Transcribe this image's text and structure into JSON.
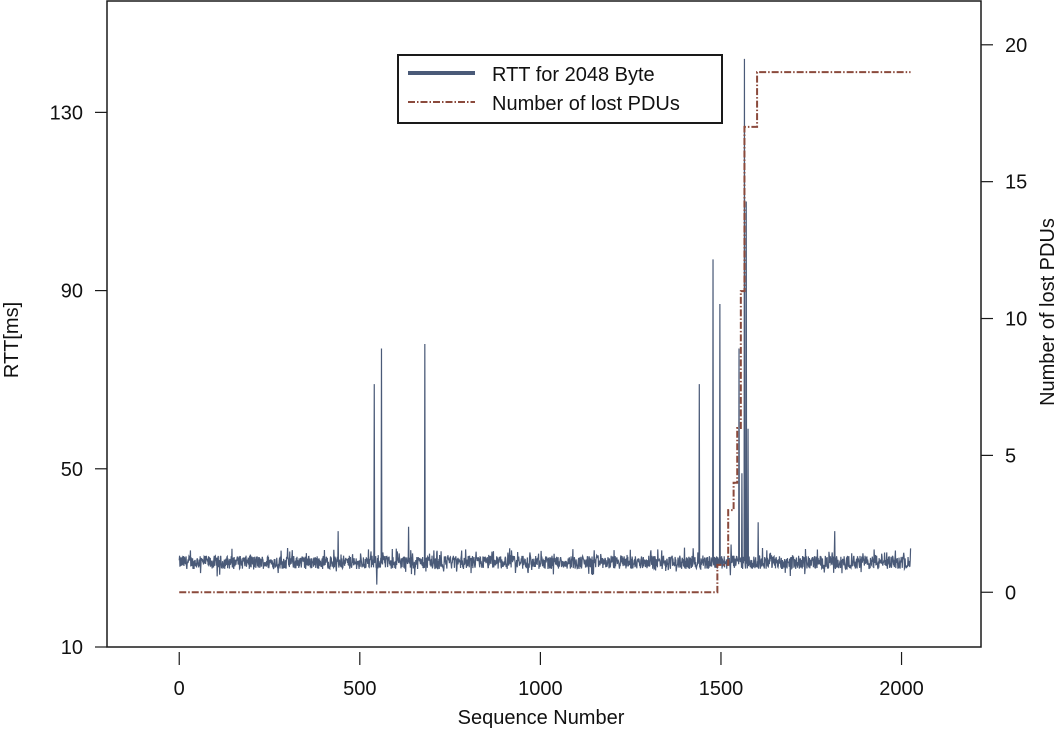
{
  "chart_data": {
    "type": "line",
    "title": "",
    "xlabel": "Sequence Number",
    "ylabel": "RTT[ms]",
    "y2label": "Number of lost PDUs",
    "xlim": [
      -200,
      2220
    ],
    "ylim": [
      10,
      155
    ],
    "y2lim": [
      -2,
      21.6
    ],
    "xticks": [
      0,
      500,
      1000,
      1500,
      2000
    ],
    "yticks": [
      10,
      50,
      90,
      130
    ],
    "y2ticks": [
      0,
      5,
      10,
      15,
      20
    ],
    "grid": false,
    "legend_position": "upper center",
    "series": [
      {
        "name": "RTT for 2048 Byte",
        "axis": "left",
        "color": "#4a5a78",
        "style": "solid",
        "baseline_ms": 29,
        "noise_ms": 1.5,
        "x_range": [
          0,
          2025
        ],
        "spikes": [
          {
            "x": 440,
            "y": 36
          },
          {
            "x": 540,
            "y": 69
          },
          {
            "x": 547,
            "y": 24
          },
          {
            "x": 560,
            "y": 77
          },
          {
            "x": 590,
            "y": 32
          },
          {
            "x": 635,
            "y": 37
          },
          {
            "x": 680,
            "y": 78
          },
          {
            "x": 1440,
            "y": 69
          },
          {
            "x": 1478,
            "y": 97
          },
          {
            "x": 1497,
            "y": 87
          },
          {
            "x": 1528,
            "y": 33
          },
          {
            "x": 1550,
            "y": 77
          },
          {
            "x": 1558,
            "y": 49
          },
          {
            "x": 1565,
            "y": 142
          },
          {
            "x": 1570,
            "y": 110
          },
          {
            "x": 1575,
            "y": 59
          },
          {
            "x": 1603,
            "y": 38
          },
          {
            "x": 1815,
            "y": 36
          }
        ]
      },
      {
        "name": "Number of lost PDUs",
        "axis": "right",
        "color": "#8b4a3c",
        "style": "dash-dot",
        "points": [
          [
            0,
            0
          ],
          [
            1490,
            0
          ],
          [
            1490,
            1
          ],
          [
            1520,
            1
          ],
          [
            1520,
            3
          ],
          [
            1535,
            3
          ],
          [
            1535,
            4
          ],
          [
            1545,
            4
          ],
          [
            1545,
            6
          ],
          [
            1555,
            6
          ],
          [
            1555,
            11
          ],
          [
            1565,
            11
          ],
          [
            1565,
            17
          ],
          [
            1600,
            17
          ],
          [
            1600,
            19
          ],
          [
            2025,
            19
          ]
        ]
      }
    ]
  },
  "legend": {
    "items": [
      {
        "label": "RTT for 2048 Byte"
      },
      {
        "label": "Number of lost PDUs"
      }
    ]
  },
  "axes": {
    "x_title": "Sequence Number",
    "y_left_title": "RTT[ms]",
    "y_right_title": "Number of lost PDUs",
    "x_tick_labels": [
      "0",
      "500",
      "1000",
      "1500",
      "2000"
    ],
    "y_left_tick_labels": [
      "10",
      "50",
      "90",
      "130"
    ],
    "y_right_tick_labels": [
      "0",
      "5",
      "10",
      "15",
      "20"
    ]
  }
}
